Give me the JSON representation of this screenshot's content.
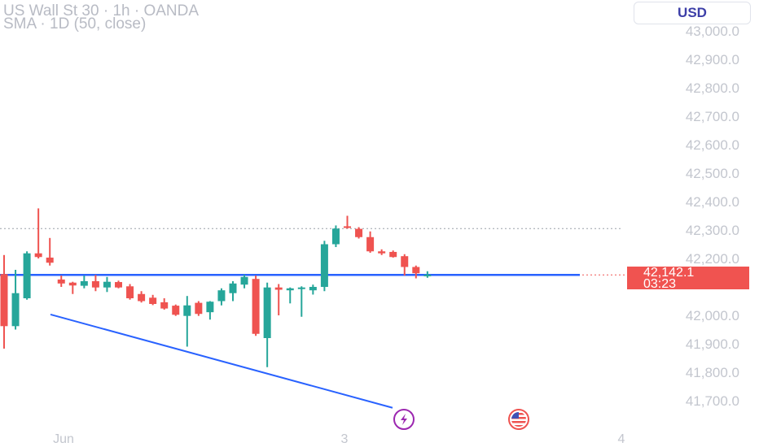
{
  "header": {
    "symbol_line": "US Wall St 30 · 1h · OANDA",
    "indicator_line": "SMA · 1D (50, close)",
    "currency_button": "USD"
  },
  "price_label": {
    "price": "42,142.1",
    "countdown": "03:23"
  },
  "colors": {
    "up": "#26a69a",
    "down": "#ef5350",
    "trendline": "#2962ff",
    "sma": "#2962ff",
    "grid_text": "#c3c6ce"
  },
  "icons": [
    "lightning-icon",
    "us-flag-icon"
  ],
  "chart_data": {
    "type": "candlestick",
    "y_axis": {
      "ticks": [
        43000,
        42900,
        42800,
        42700,
        42600,
        42500,
        42400,
        42300,
        42200,
        42000,
        41900,
        41800,
        41700
      ],
      "tick_labels": [
        "43,000.0",
        "42,900.0",
        "42,800.0",
        "42,700.0",
        "42,600.0",
        "42,500.0",
        "42,400.0",
        "42,300.0",
        "42,200.0",
        "42,000.0",
        "41,900.0",
        "41,800.0",
        "41,700.0"
      ]
    },
    "x_axis": {
      "tick_labels": [
        "Jun",
        "3",
        "4"
      ]
    },
    "sma_value": 42142,
    "dotted_high_line": 42305,
    "current_price": 42142.1,
    "candles": [
      {
        "o": 42145,
        "h": 42212,
        "l": 41883,
        "c": 41962
      },
      {
        "o": 41962,
        "h": 42160,
        "l": 41950,
        "c": 42078
      },
      {
        "o": 42060,
        "h": 42225,
        "l": 42055,
        "c": 42218
      },
      {
        "o": 42218,
        "h": 42376,
        "l": 42200,
        "c": 42205
      },
      {
        "o": 42203,
        "h": 42272,
        "l": 42175,
        "c": 42185
      },
      {
        "o": 42126,
        "h": 42140,
        "l": 42100,
        "c": 42112
      },
      {
        "o": 42115,
        "h": 42118,
        "l": 42075,
        "c": 42105
      },
      {
        "o": 42104,
        "h": 42140,
        "l": 42095,
        "c": 42120
      },
      {
        "o": 42120,
        "h": 42142,
        "l": 42085,
        "c": 42098
      },
      {
        "o": 42098,
        "h": 42135,
        "l": 42082,
        "c": 42118
      },
      {
        "o": 42117,
        "h": 42122,
        "l": 42095,
        "c": 42098
      },
      {
        "o": 42102,
        "h": 42110,
        "l": 42055,
        "c": 42060
      },
      {
        "o": 42075,
        "h": 42085,
        "l": 42045,
        "c": 42050
      },
      {
        "o": 42062,
        "h": 42072,
        "l": 42036,
        "c": 42040
      },
      {
        "o": 42046,
        "h": 42060,
        "l": 42020,
        "c": 42024
      },
      {
        "o": 42034,
        "h": 42038,
        "l": 41998,
        "c": 42002
      },
      {
        "o": 41998,
        "h": 42068,
        "l": 41890,
        "c": 42035
      },
      {
        "o": 42044,
        "h": 42050,
        "l": 41998,
        "c": 42005
      },
      {
        "o": 42011,
        "h": 42050,
        "l": 41985,
        "c": 42048
      },
      {
        "o": 42050,
        "h": 42095,
        "l": 42035,
        "c": 42088
      },
      {
        "o": 42078,
        "h": 42120,
        "l": 42050,
        "c": 42112
      },
      {
        "o": 42108,
        "h": 42143,
        "l": 42095,
        "c": 42135
      },
      {
        "o": 42128,
        "h": 42140,
        "l": 41928,
        "c": 41935
      },
      {
        "o": 41920,
        "h": 42115,
        "l": 41818,
        "c": 42098
      },
      {
        "o": 42098,
        "h": 42110,
        "l": 42000,
        "c": 42090
      },
      {
        "o": 42088,
        "h": 42098,
        "l": 42042,
        "c": 42095
      },
      {
        "o": 42093,
        "h": 42102,
        "l": 41995,
        "c": 42098
      },
      {
        "o": 42088,
        "h": 42108,
        "l": 42073,
        "c": 42100
      },
      {
        "o": 42100,
        "h": 42262,
        "l": 42085,
        "c": 42250
      },
      {
        "o": 42250,
        "h": 42316,
        "l": 42240,
        "c": 42305
      },
      {
        "o": 42313,
        "h": 42350,
        "l": 42305,
        "c": 42310
      },
      {
        "o": 42304,
        "h": 42310,
        "l": 42270,
        "c": 42275
      },
      {
        "o": 42275,
        "h": 42295,
        "l": 42220,
        "c": 42225
      },
      {
        "o": 42225,
        "h": 42232,
        "l": 42212,
        "c": 42218
      },
      {
        "o": 42223,
        "h": 42228,
        "l": 42203,
        "c": 42205
      },
      {
        "o": 42208,
        "h": 42215,
        "l": 42140,
        "c": 42170
      },
      {
        "o": 42170,
        "h": 42175,
        "l": 42130,
        "c": 42148
      },
      {
        "o": 42142,
        "h": 42155,
        "l": 42132,
        "c": 42143
      }
    ],
    "trendline": {
      "from": {
        "candle": 4,
        "price": 42003
      },
      "to": {
        "candle": 39,
        "price": 41675
      }
    }
  }
}
